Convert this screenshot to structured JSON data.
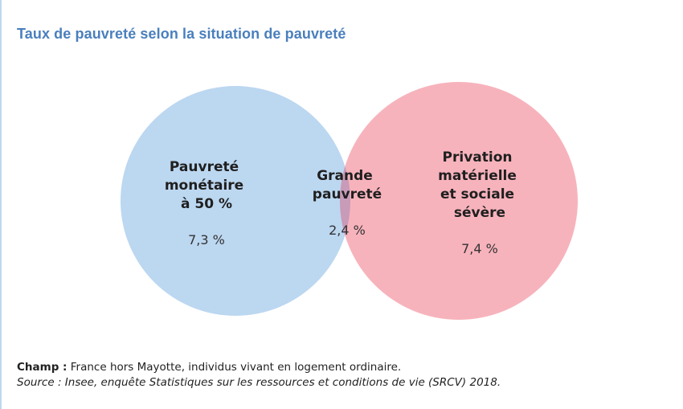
{
  "title": "Taux de pauvreté selon la situation de pauvreté",
  "colors": {
    "title": "#4a7fbd",
    "left_circle": "#bcd7f0",
    "right_circle": "#f7b3bc",
    "intersection": "#c89bb8"
  },
  "venn": {
    "left": {
      "label_lines": [
        "Pauvreté",
        "monétaire",
        "à 50 %"
      ],
      "value": "7,3 %"
    },
    "intersection": {
      "label_lines": [
        "Grande",
        "pauvreté"
      ],
      "value": "2,4 %"
    },
    "right": {
      "label_lines": [
        "Privation",
        "matérielle",
        "et sociale",
        "sévère"
      ],
      "value": "7,4 %"
    }
  },
  "footnotes": {
    "champ_label": "Champ :",
    "champ_text": " France hors Mayotte, individus vivant en logement ordinaire.",
    "source": "Source : Insee, enquête Statistiques sur les ressources et conditions de vie (SRCV) 2018."
  }
}
